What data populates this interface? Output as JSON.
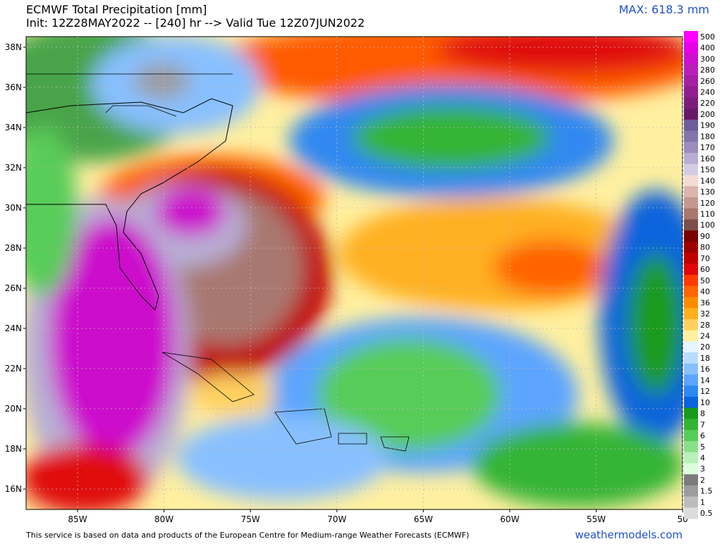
{
  "header": {
    "title": "ECMWF Total Precipitation [mm]",
    "subtitle": "Init: 12Z28MAY2022 -- [240] hr --> Valid Tue 12Z07JUN2022",
    "max": "MAX: 618.3 mm"
  },
  "lat_labels": [
    "38N",
    "36N",
    "34N",
    "32N",
    "30N",
    "28N",
    "26N",
    "24N",
    "22N",
    "20N",
    "18N",
    "16N"
  ],
  "lon_labels": [
    "85W",
    "80W",
    "75W",
    "70W",
    "65W",
    "60W",
    "55W",
    "50"
  ],
  "colorbar": {
    "labels": [
      "500",
      "400",
      "300",
      "280",
      "260",
      "240",
      "220",
      "200",
      "190",
      "180",
      "170",
      "160",
      "150",
      "140",
      "130",
      "120",
      "110",
      "100",
      "90",
      "80",
      "70",
      "60",
      "50",
      "40",
      "36",
      "32",
      "28",
      "24",
      "20",
      "18",
      "16",
      "14",
      "12",
      "10",
      "8",
      "7",
      "6",
      "5",
      "4",
      "3",
      "2",
      "1.5",
      "1",
      "0.5"
    ],
    "colors": [
      "#ff00ff",
      "#e600e6",
      "#cc10cc",
      "#b820b8",
      "#a420a4",
      "#901e90",
      "#7c1c7c",
      "#681868",
      "#6e5c9c",
      "#8474ac",
      "#9c8cbc",
      "#b8aed4",
      "#d4cce4",
      "#f2dcd4",
      "#dcb4ac",
      "#c49890",
      "#a87870",
      "#7c5048",
      "#7a0000",
      "#9c0000",
      "#c00000",
      "#e00808",
      "#ff3a00",
      "#ff6400",
      "#ff8c00",
      "#ffb020",
      "#ffd060",
      "#fff0a0",
      "#e6f6ff",
      "#b8dcff",
      "#88c0ff",
      "#5ca4ff",
      "#3088f0",
      "#0a64dc",
      "#1a9a1a",
      "#34b434",
      "#58cc58",
      "#88e088",
      "#b8f0b8",
      "#dcfcdc",
      "#7c7c7c",
      "#9c9c9c",
      "#bcbcbc",
      "#dcdcdc"
    ]
  },
  "footer": {
    "credit": "This service is based on data and products of the European Centre for Medium-range Weather Forecasts (ECMWF)",
    "site": "weathermodels.com"
  }
}
